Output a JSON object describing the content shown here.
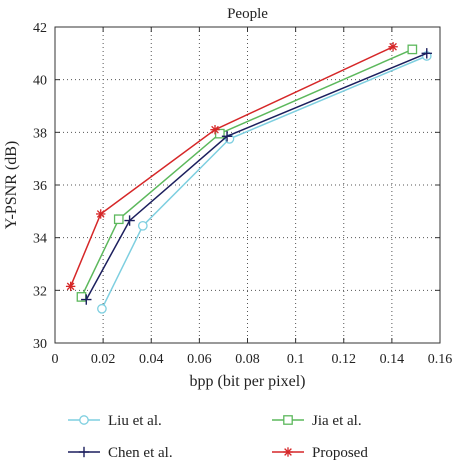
{
  "chart_data": {
    "type": "line",
    "title": "People",
    "xlabel": "bpp (bit per pixel)",
    "ylabel": "Y-PSNR (dB)",
    "xlim": [
      0,
      0.16
    ],
    "ylim": [
      30,
      42
    ],
    "xticks": [
      0,
      0.02,
      0.04,
      0.06,
      0.08,
      0.1,
      0.12,
      0.14,
      0.16
    ],
    "xtick_labels": [
      "0",
      "0.02",
      "0.04",
      "0.06",
      "0.08",
      "0.1",
      "0.12",
      "0.14",
      "0.16"
    ],
    "yticks": [
      30,
      32,
      34,
      36,
      38,
      40,
      42
    ],
    "ytick_labels": [
      "30",
      "32",
      "34",
      "36",
      "38",
      "40",
      "42"
    ],
    "grid": true,
    "legend_position": "bottom",
    "series": [
      {
        "name": "Liu et al.",
        "color": "#7ecfe0",
        "marker": "circle",
        "x": [
          0.0195,
          0.0365,
          0.0725,
          0.1545
        ],
        "y": [
          31.3,
          34.45,
          37.75,
          40.9
        ]
      },
      {
        "name": "Jia et al.",
        "color": "#5cb85c",
        "marker": "square",
        "x": [
          0.011,
          0.0265,
          0.0685,
          0.1485
        ],
        "y": [
          31.75,
          34.7,
          37.95,
          41.15
        ]
      },
      {
        "name": "Chen et al.",
        "color": "#1c1f5e",
        "marker": "plus",
        "x": [
          0.013,
          0.031,
          0.0715,
          0.1545
        ],
        "y": [
          31.65,
          34.65,
          37.85,
          41.0
        ]
      },
      {
        "name": "Proposed",
        "color": "#d62728",
        "marker": "star",
        "x": [
          0.0065,
          0.019,
          0.0665,
          0.1405
        ],
        "y": [
          32.15,
          34.9,
          38.1,
          41.25
        ]
      }
    ]
  }
}
